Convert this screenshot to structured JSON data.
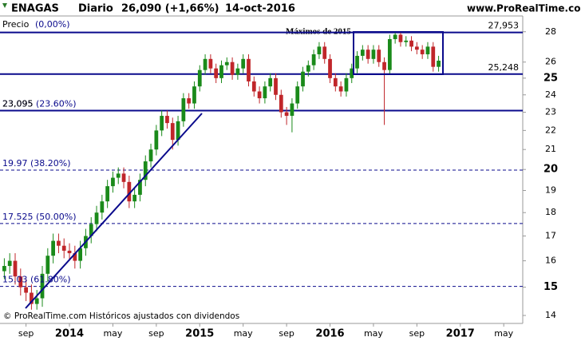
{
  "chart_data": {
    "type": "candlestick",
    "title": "ENAGAS",
    "period": "Diario",
    "price": "26,090 (+1,66%)",
    "date": "14-oct-2016",
    "site": "www.ProRealTime.com",
    "price_label": "Precio",
    "price_change": "(0,00%)",
    "annotation": "Máximos de 2015",
    "footer": "© ProRealTime.com Históricos ajustados con dividendos",
    "categories": [
      null,
      null,
      null,
      null,
      "sep",
      null,
      null,
      null,
      null,
      null,
      null,
      null,
      "2014",
      null,
      null,
      null,
      null,
      null,
      null,
      null,
      "may",
      null,
      null,
      null,
      null,
      null,
      null,
      null,
      "sep",
      null,
      null,
      null,
      null,
      null,
      null,
      null,
      "2015",
      null,
      null,
      null,
      null,
      null,
      null,
      null,
      "may",
      null,
      null,
      null,
      null,
      null,
      null,
      null,
      "sep",
      null,
      null,
      null,
      null,
      null,
      null,
      null,
      "2016",
      null,
      null,
      null,
      null,
      null,
      null,
      null,
      "may",
      null,
      null,
      null,
      null,
      null,
      null,
      null,
      "sep",
      null,
      null,
      null,
      null,
      null,
      null,
      null,
      "2017",
      null,
      null,
      null,
      null,
      null,
      null,
      null,
      "may",
      null,
      null,
      null
    ],
    "open": [
      15.6,
      15.8,
      16.0,
      15.4,
      15.0,
      14.8,
      14.4,
      14.6,
      15.5,
      16.2,
      16.8,
      16.6,
      16.4,
      16.3,
      16.0,
      16.5,
      17.0,
      17.5,
      18.0,
      18.5,
      19.2,
      19.6,
      19.8,
      19.4,
      18.5,
      18.8,
      19.5,
      20.4,
      21.0,
      22.0,
      22.8,
      22.4,
      21.5,
      22.5,
      23.8,
      23.5,
      24.5,
      25.5,
      26.2,
      25.6,
      25.0,
      25.8,
      26.0,
      25.2,
      25.6,
      26.2,
      24.8,
      24.2,
      23.8,
      24.5,
      25.0,
      24.0,
      23.0,
      22.8,
      23.5,
      24.5,
      25.4,
      25.8,
      26.5,
      27.0,
      26.2,
      25.0,
      24.5,
      24.2,
      25.0,
      25.6,
      26.4,
      26.8,
      26.2,
      26.8,
      26.0,
      25.5,
      27.5,
      27.8,
      27.3,
      27.4,
      27.0,
      26.8,
      26.5,
      27.0,
      25.7,
      null,
      null,
      null,
      null,
      null,
      null,
      null,
      null,
      null,
      null,
      null,
      null,
      null,
      null,
      null
    ],
    "high": [
      16.1,
      16.3,
      16.3,
      15.7,
      15.3,
      15.1,
      14.9,
      15.8,
      16.5,
      17.1,
      17.1,
      16.9,
      16.7,
      16.6,
      16.8,
      17.3,
      17.8,
      18.3,
      18.8,
      19.5,
      19.9,
      20.1,
      20.1,
      19.7,
      19.1,
      19.8,
      20.7,
      21.3,
      22.3,
      23.1,
      23.1,
      22.7,
      22.8,
      24.1,
      24.1,
      24.8,
      25.8,
      26.5,
      26.5,
      25.9,
      26.1,
      26.3,
      26.3,
      25.9,
      26.5,
      26.5,
      25.1,
      24.5,
      24.8,
      25.3,
      25.3,
      24.3,
      23.3,
      23.8,
      24.8,
      25.7,
      26.1,
      26.8,
      27.3,
      27.3,
      26.5,
      25.3,
      24.8,
      25.3,
      25.9,
      26.7,
      27.1,
      27.1,
      27.1,
      27.1,
      26.3,
      27.8,
      28.0,
      28.0,
      27.7,
      27.7,
      27.3,
      27.1,
      27.3,
      27.3,
      26.4,
      null,
      null,
      null,
      null,
      null,
      null,
      null,
      null,
      null,
      null,
      null,
      null,
      null,
      null,
      null
    ],
    "low": [
      15.3,
      15.5,
      15.1,
      14.7,
      14.5,
      14.2,
      14.2,
      14.3,
      15.2,
      15.9,
      16.3,
      16.1,
      16.0,
      15.7,
      15.7,
      16.2,
      16.7,
      17.2,
      17.7,
      18.2,
      18.9,
      19.3,
      19.1,
      18.2,
      18.2,
      18.5,
      19.2,
      20.1,
      20.7,
      21.7,
      22.1,
      21.0,
      21.2,
      22.2,
      23.2,
      23.2,
      24.2,
      25.2,
      25.3,
      24.7,
      24.7,
      25.5,
      24.9,
      24.9,
      25.3,
      24.5,
      23.9,
      23.5,
      23.5,
      24.2,
      23.7,
      22.7,
      22.3,
      21.9,
      23.2,
      24.2,
      25.1,
      25.5,
      26.2,
      25.9,
      24.7,
      24.2,
      23.9,
      23.9,
      24.7,
      25.3,
      26.1,
      25.9,
      25.9,
      25.7,
      22.3,
      25.2,
      27.2,
      27.0,
      27.0,
      26.7,
      26.5,
      26.2,
      26.2,
      25.4,
      25.4,
      null,
      null,
      null,
      null,
      null,
      null,
      null,
      null,
      null,
      null,
      null,
      null,
      null,
      null,
      null
    ],
    "close": [
      15.8,
      16.0,
      15.4,
      15.0,
      14.8,
      14.4,
      14.6,
      15.5,
      16.2,
      16.8,
      16.6,
      16.4,
      16.3,
      16.0,
      16.5,
      17.0,
      17.5,
      18.0,
      18.5,
      19.2,
      19.6,
      19.8,
      19.4,
      18.5,
      18.8,
      19.5,
      20.4,
      21.0,
      22.0,
      22.8,
      22.4,
      21.5,
      22.5,
      23.8,
      23.5,
      24.5,
      25.5,
      26.2,
      25.6,
      25.0,
      25.8,
      26.0,
      25.2,
      25.6,
      26.2,
      24.8,
      24.2,
      23.8,
      24.5,
      25.0,
      24.0,
      23.0,
      22.8,
      23.5,
      24.5,
      25.4,
      25.8,
      26.5,
      27.0,
      26.2,
      25.0,
      24.5,
      24.2,
      25.0,
      25.6,
      26.4,
      26.8,
      26.2,
      26.8,
      26.0,
      25.5,
      27.5,
      27.8,
      27.3,
      27.4,
      27.0,
      26.8,
      26.5,
      27.0,
      25.7,
      26.09,
      null,
      null,
      null,
      null,
      null,
      null,
      null,
      null,
      null,
      null,
      null,
      null,
      null,
      null,
      null
    ],
    "up_color": "#1a8a1a",
    "down_color": "#c0262a",
    "ylim": [
      13.73,
      29.1
    ],
    "log_scale": true,
    "yticks": [
      14,
      15,
      16,
      17,
      18,
      19,
      20,
      21,
      22,
      23,
      24,
      25,
      26,
      28
    ],
    "levels": [
      {
        "value": 27.953,
        "label": "27,953"
      },
      {
        "value": 25.248,
        "label": "25,248"
      },
      {
        "value": 23.095,
        "label": "23,095"
      }
    ],
    "fibonacci": [
      {
        "value": 23.095,
        "label": "23.095 (23.60%)"
      },
      {
        "value": 19.97,
        "label": "19.97 (38.20%)"
      },
      {
        "value": 17.525,
        "label": "17.525 (50.00%)"
      },
      {
        "value": 15.03,
        "label": "15.03 (61.80%)"
      }
    ],
    "level_color": "#0a0a8c"
  }
}
